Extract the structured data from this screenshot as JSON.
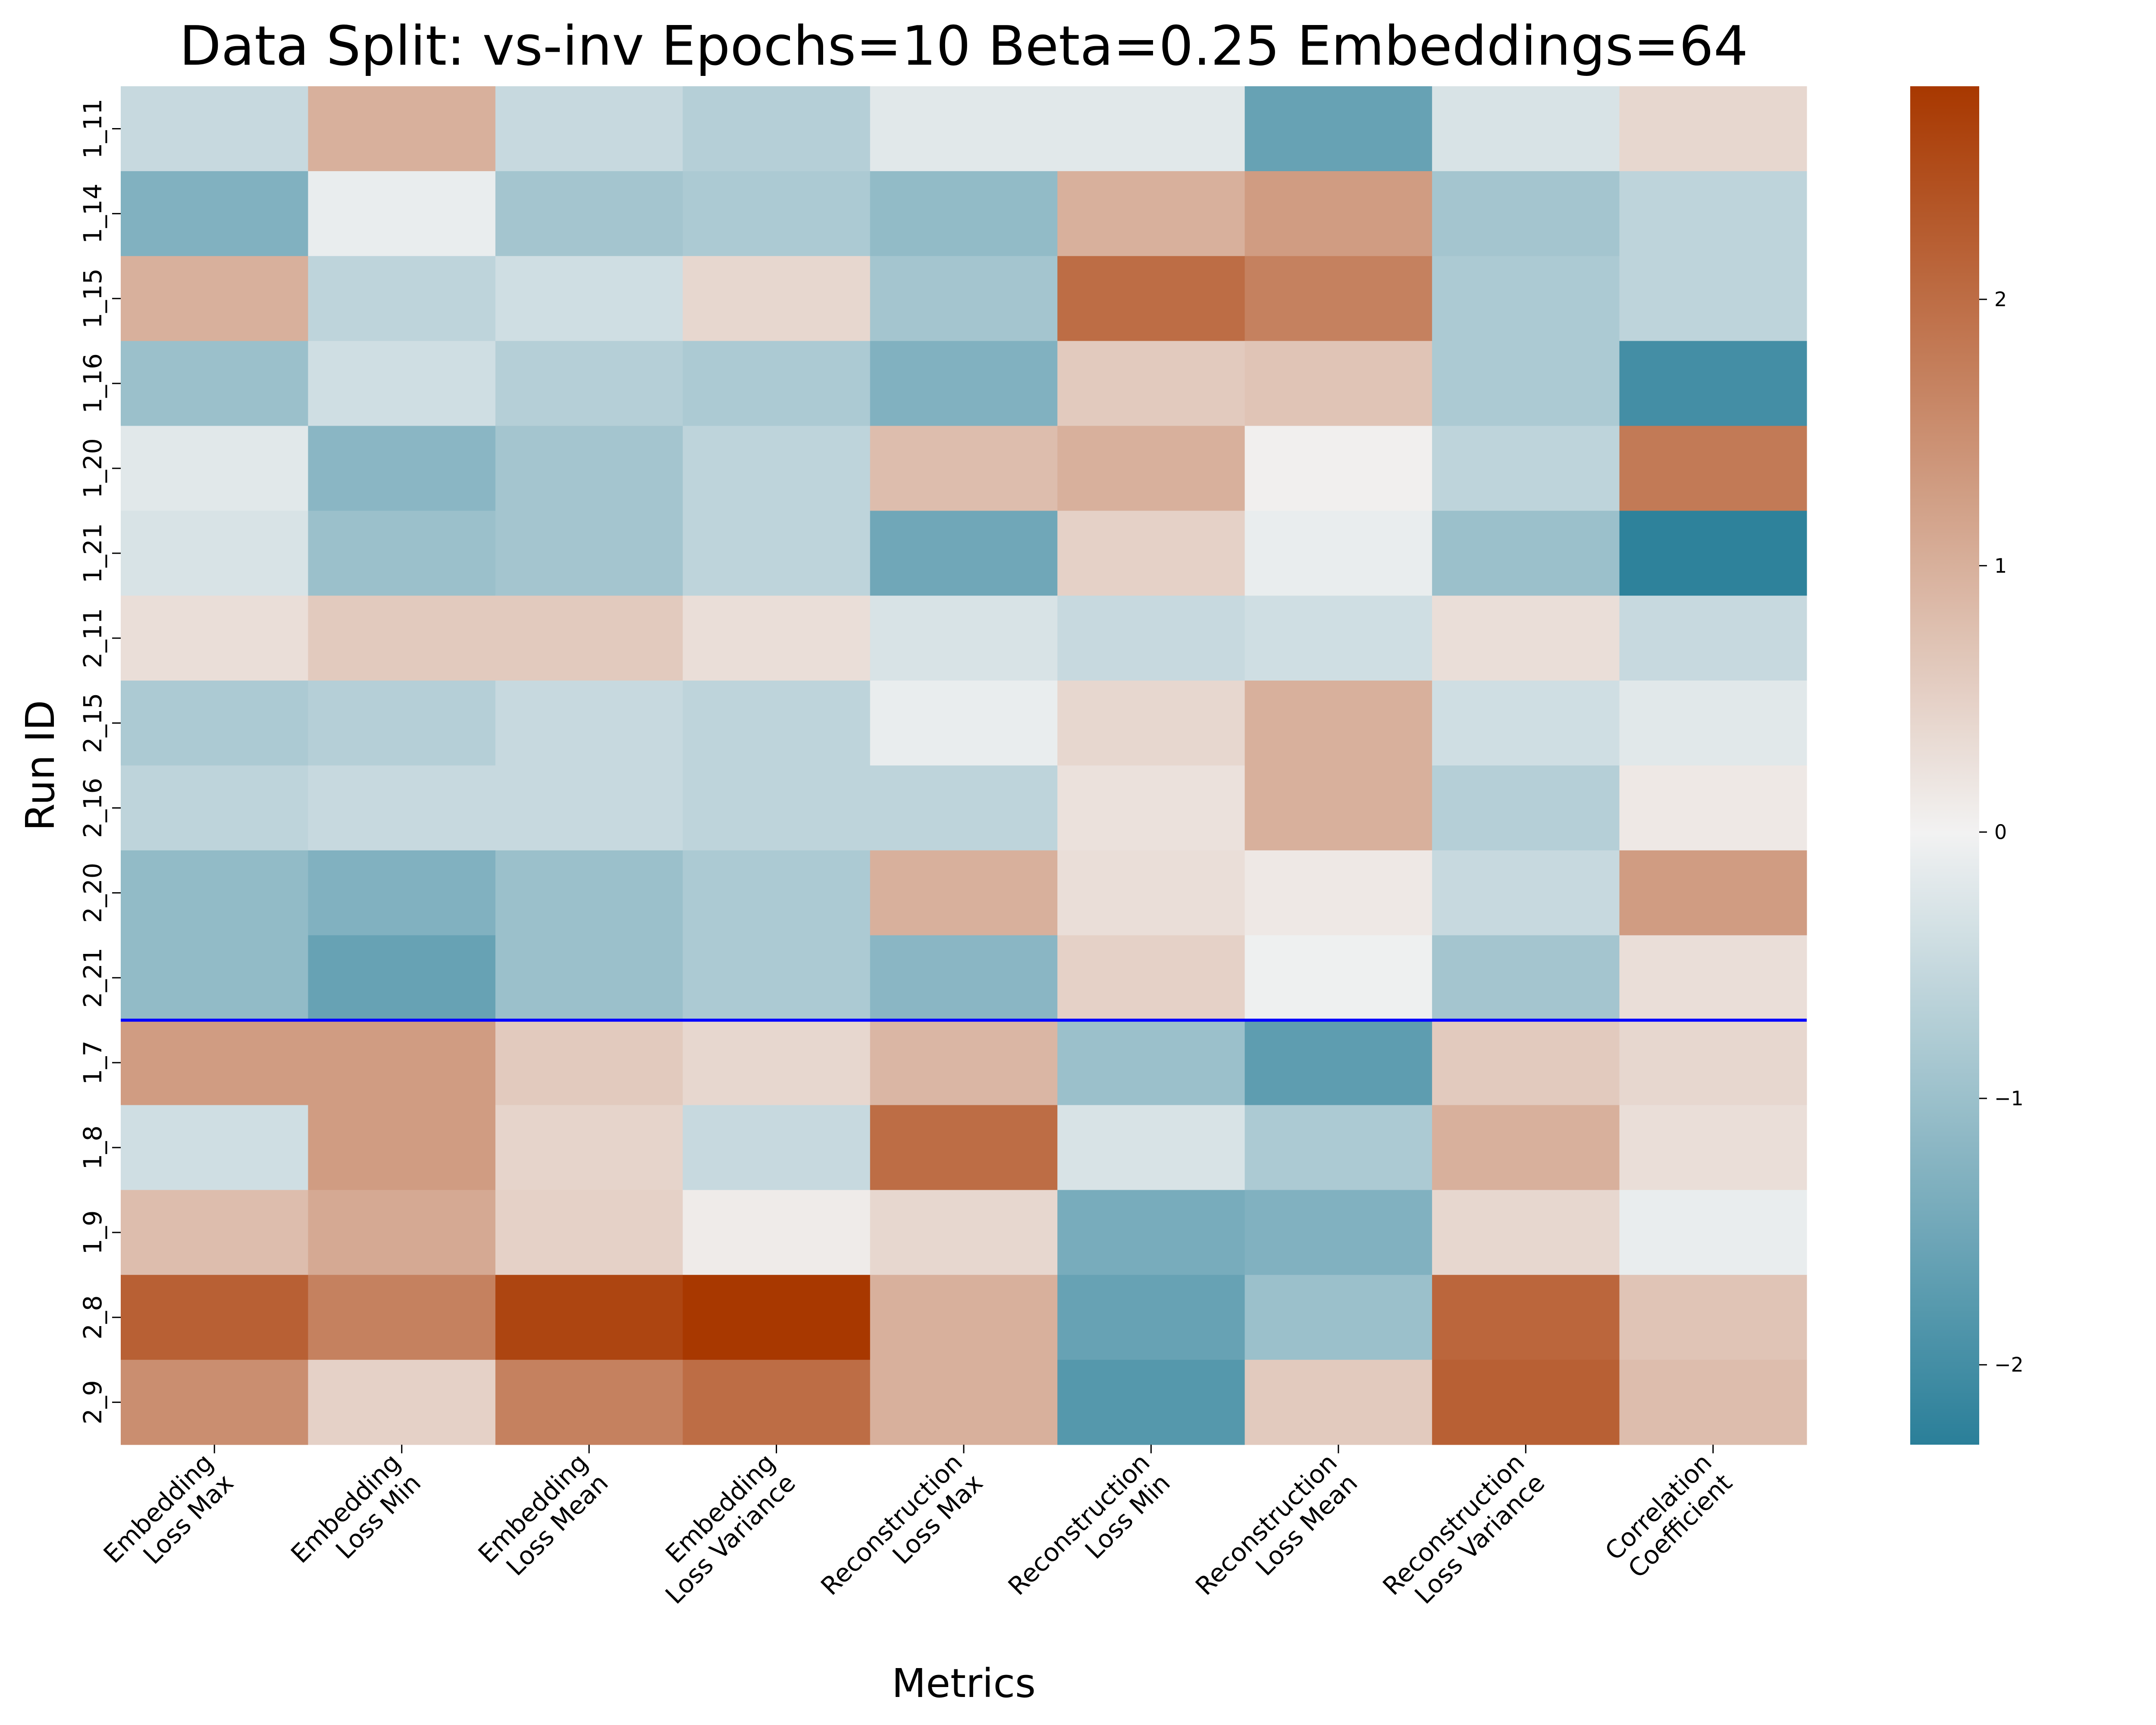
{
  "chart_data": {
    "type": "heatmap",
    "title": "Data Split: vs-inv Epochs=10 Beta=0.25 Embeddings=64",
    "xlabel": "Metrics",
    "ylabel": "Run ID",
    "x_categories": [
      [
        "Embedding",
        "Loss Max"
      ],
      [
        "Embedding",
        "Loss Min"
      ],
      [
        "Embedding",
        "Loss Mean"
      ],
      [
        "Embedding",
        "Loss Variance"
      ],
      [
        "Reconstruction",
        "Loss Max"
      ],
      [
        "Reconstruction",
        "Loss Min"
      ],
      [
        "Reconstruction",
        "Loss Mean"
      ],
      [
        "Reconstruction",
        "Loss Variance"
      ],
      [
        "Correlation",
        "Coefficient"
      ]
    ],
    "y_categories": [
      "1_11",
      "1_14",
      "1_15",
      "1_16",
      "1_20",
      "1_21",
      "2_11",
      "2_15",
      "2_16",
      "2_20",
      "2_21",
      "1_7",
      "1_8",
      "1_9",
      "2_8",
      "2_9"
    ],
    "values": [
      [
        -0.5,
        1.0,
        -0.5,
        -0.7,
        -0.2,
        -0.2,
        -1.6,
        -0.3,
        0.4
      ],
      [
        -1.3,
        -0.1,
        -0.9,
        -0.8,
        -1.1,
        1.0,
        1.3,
        -0.9,
        -0.6
      ],
      [
        1.0,
        -0.6,
        -0.4,
        0.4,
        -0.9,
        2.0,
        1.7,
        -0.8,
        -0.6
      ],
      [
        -1.0,
        -0.4,
        -0.7,
        -0.8,
        -1.3,
        0.6,
        0.7,
        -0.8,
        -2.0
      ],
      [
        -0.2,
        -1.2,
        -0.9,
        -0.6,
        0.8,
        1.0,
        0.05,
        -0.6,
        1.8
      ],
      [
        -0.3,
        -1.0,
        -0.9,
        -0.6,
        -1.5,
        0.5,
        -0.1,
        -1.0,
        -2.25
      ],
      [
        0.3,
        0.6,
        0.6,
        0.3,
        -0.3,
        -0.5,
        -0.4,
        0.3,
        -0.5
      ],
      [
        -0.8,
        -0.7,
        -0.5,
        -0.6,
        -0.1,
        0.4,
        1.0,
        -0.4,
        -0.2
      ],
      [
        -0.6,
        -0.5,
        -0.5,
        -0.6,
        -0.6,
        0.25,
        1.0,
        -0.7,
        0.15
      ],
      [
        -1.1,
        -1.3,
        -1.0,
        -0.8,
        1.0,
        0.3,
        0.15,
        -0.5,
        1.3
      ],
      [
        -1.1,
        -1.6,
        -1.0,
        -0.8,
        -1.2,
        0.5,
        -0.05,
        -0.9,
        0.3
      ],
      [
        1.3,
        1.3,
        0.6,
        0.4,
        0.9,
        -1.0,
        -1.7,
        0.6,
        0.4
      ],
      [
        -0.4,
        1.3,
        0.45,
        -0.5,
        2.0,
        -0.3,
        -0.8,
        1.0,
        0.3
      ],
      [
        0.8,
        1.1,
        0.5,
        0.1,
        0.4,
        -1.4,
        -1.3,
        0.4,
        -0.1
      ],
      [
        2.2,
        1.7,
        2.6,
        2.8,
        1.0,
        -1.6,
        -1.0,
        2.1,
        0.7
      ],
      [
        1.5,
        0.5,
        1.7,
        2.0,
        1.0,
        -1.8,
        0.6,
        2.2,
        0.8
      ]
    ],
    "separator_after_row": 10,
    "separator_color": "#0000ff",
    "colorbar": {
      "vmin": -2.3,
      "vmax": 2.8,
      "ticks": [
        -2,
        -1,
        0,
        1,
        2
      ],
      "tick_labels": [
        "−2",
        "−1",
        "0",
        "1",
        "2"
      ]
    },
    "colormap": {
      "negative": "#2a7f99",
      "neutral": "#f2f2f2",
      "positive": "#a83800"
    }
  }
}
